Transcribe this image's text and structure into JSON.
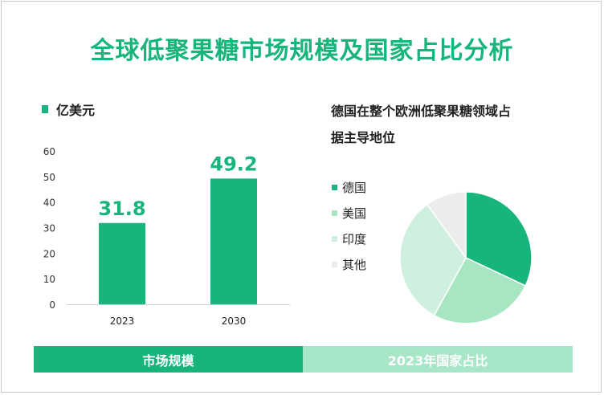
{
  "title": "全球低聚果糖市场规模及国家占比分析",
  "colors": {
    "title": "#15b57b",
    "bar": "#17b47b",
    "footer_left": "#17b47b",
    "footer_right": "#a8e6c8"
  },
  "chart_data": [
    {
      "type": "bar",
      "legend": "亿美元",
      "categories": [
        "2023",
        "2030"
      ],
      "values": [
        31.8,
        49.2
      ],
      "value_labels": [
        "31.8",
        "49.2"
      ],
      "yticks": [
        "0",
        "10",
        "20",
        "30",
        "40",
        "50",
        "60"
      ],
      "ylim": [
        0,
        60
      ],
      "grid": false
    },
    {
      "type": "pie",
      "title": "德国在整个欧洲低聚果糖领域占据主导地位",
      "title_lines": [
        "德国在整个欧洲低聚果糖领域占",
        "据主导地位"
      ],
      "labels": [
        "德国",
        "美国",
        "印度",
        "其他"
      ],
      "values": [
        32,
        26,
        32,
        10
      ],
      "colors": [
        "#17b47b",
        "#a8e6c1",
        "#d0f0df",
        "#ececec"
      ],
      "legend_position": "left"
    }
  ],
  "footer": {
    "left": "市场规模",
    "right": "2023年国家占比"
  }
}
